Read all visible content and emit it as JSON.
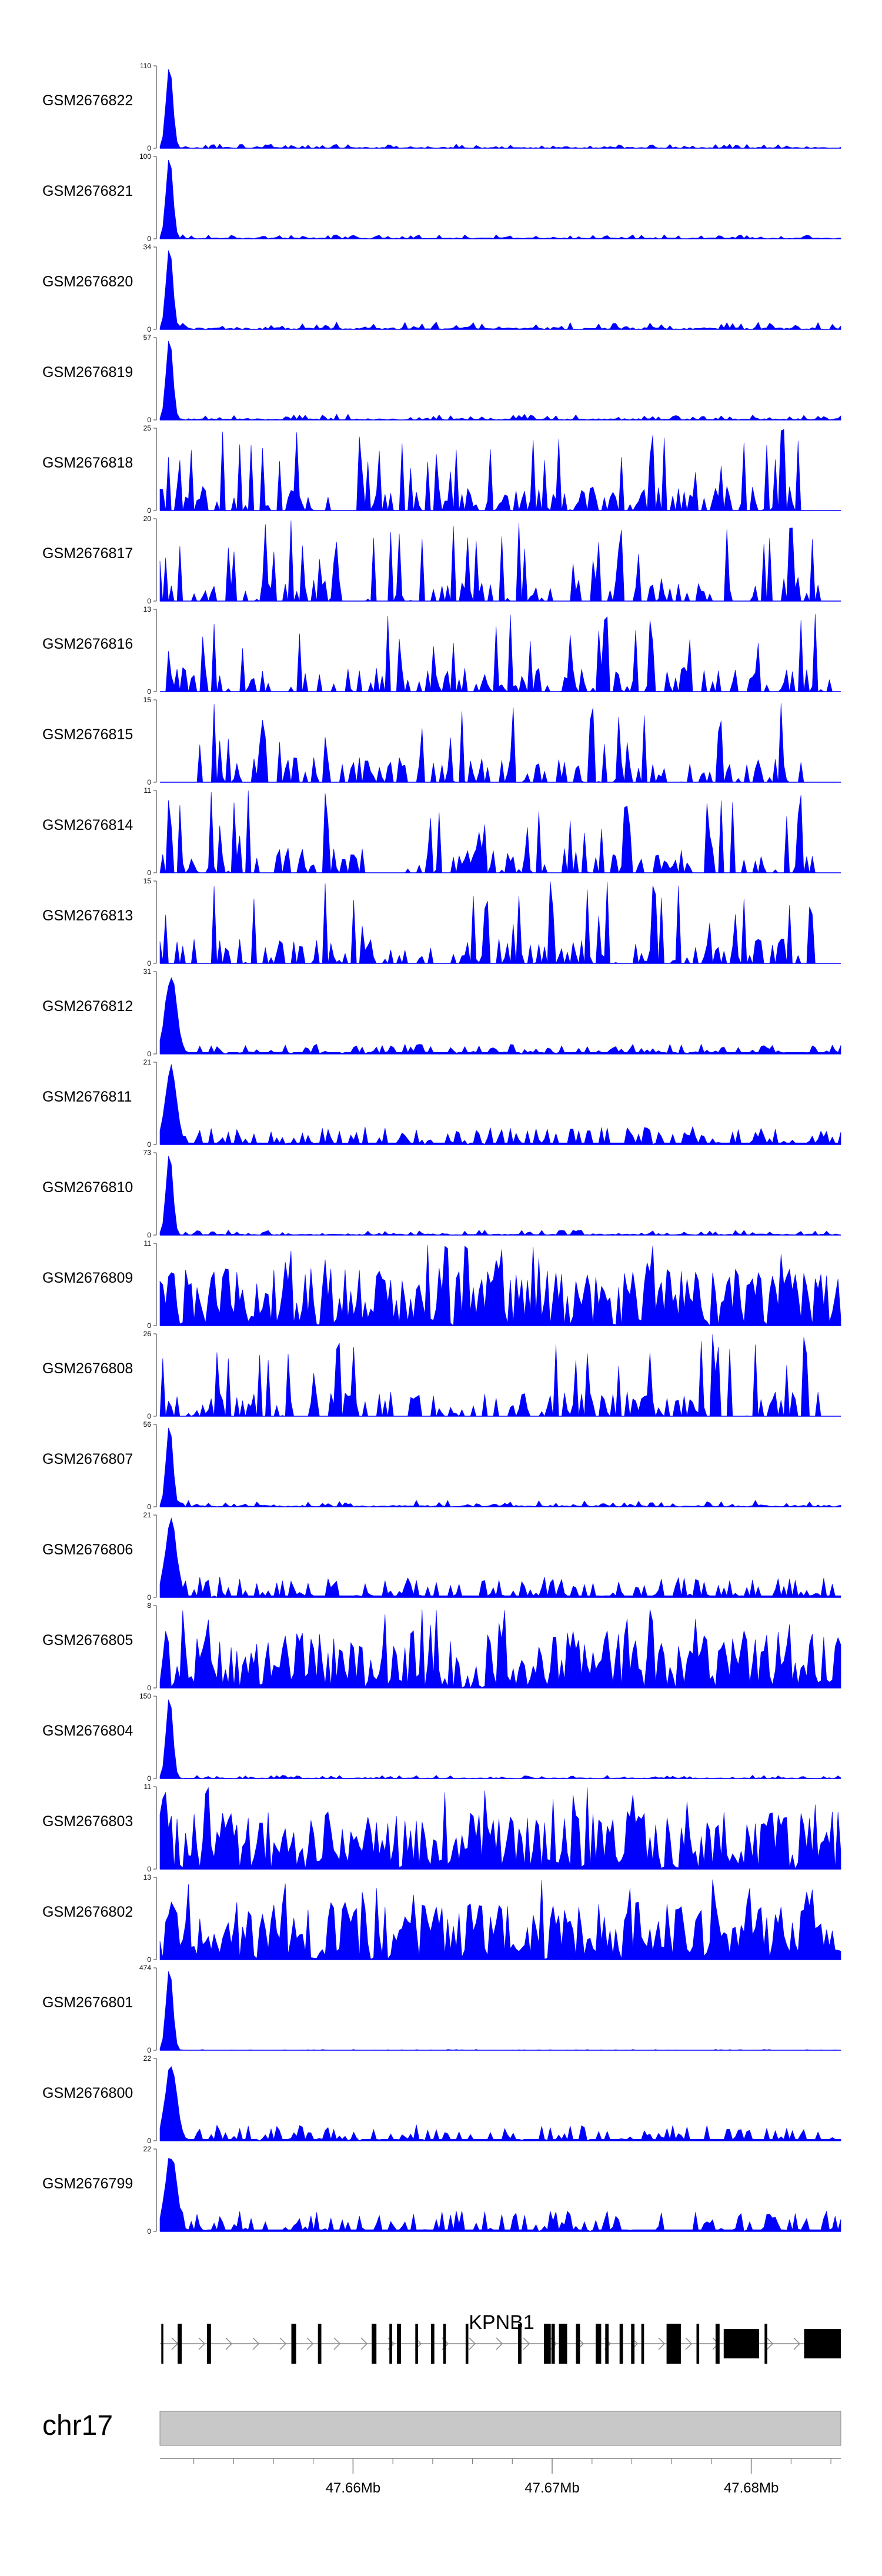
{
  "chart_data": {
    "type": "area",
    "tracks": [
      {
        "name": "GSM2676822",
        "ymax": 110,
        "profile": "peak",
        "seed": 22,
        "noise": 0.05
      },
      {
        "name": "GSM2676821",
        "ymax": 100,
        "profile": "peak",
        "seed": 21,
        "noise": 0.05
      },
      {
        "name": "GSM2676820",
        "ymax": 34,
        "profile": "peak",
        "seed": 20,
        "noise": 0.09
      },
      {
        "name": "GSM2676819",
        "ymax": 57,
        "profile": "peak",
        "seed": 19,
        "noise": 0.07
      },
      {
        "name": "GSM2676818",
        "ymax": 25,
        "profile": "sparse",
        "seed": 18,
        "xend": 0.94
      },
      {
        "name": "GSM2676817",
        "ymax": 20,
        "profile": "sparse",
        "seed": 17,
        "xend": 0.97
      },
      {
        "name": "GSM2676816",
        "ymax": 13,
        "profile": "sparse",
        "seed": 16,
        "xend": 0.99
      },
      {
        "name": "GSM2676815",
        "ymax": 15,
        "profile": "sparse",
        "seed": 15,
        "xstart": 0.05,
        "xend": 0.96
      },
      {
        "name": "GSM2676814",
        "ymax": 11,
        "profile": "sparse",
        "seed": 14,
        "xend": 0.96
      },
      {
        "name": "GSM2676813",
        "ymax": 15,
        "profile": "sparse",
        "seed": 13,
        "xend": 0.96
      },
      {
        "name": "GSM2676812",
        "ymax": 31,
        "profile": "mixed",
        "seed": 12,
        "noise": 0.12
      },
      {
        "name": "GSM2676811",
        "ymax": 21,
        "profile": "mixed",
        "seed": 11,
        "noise": 0.22
      },
      {
        "name": "GSM2676810",
        "ymax": 73,
        "profile": "peak",
        "seed": 10,
        "noise": 0.06
      },
      {
        "name": "GSM2676809",
        "ymax": 11,
        "profile": "dense",
        "seed": 9
      },
      {
        "name": "GSM2676808",
        "ymax": 26,
        "profile": "sparse",
        "seed": 8,
        "xend": 0.97
      },
      {
        "name": "GSM2676807",
        "ymax": 56,
        "profile": "peak",
        "seed": 7,
        "noise": 0.08
      },
      {
        "name": "GSM2676806",
        "ymax": 21,
        "profile": "mixed",
        "seed": 6,
        "noise": 0.25
      },
      {
        "name": "GSM2676805",
        "ymax": 8,
        "profile": "dense",
        "seed": 5
      },
      {
        "name": "GSM2676804",
        "ymax": 150,
        "profile": "peak",
        "seed": 4,
        "noise": 0.04
      },
      {
        "name": "GSM2676803",
        "ymax": 11,
        "profile": "dense",
        "seed": 3
      },
      {
        "name": "GSM2676802",
        "ymax": 13,
        "profile": "dense",
        "seed": 2
      },
      {
        "name": "GSM2676801",
        "ymax": 474,
        "profile": "peak",
        "seed": 1,
        "noise": 0.01
      },
      {
        "name": "GSM2676800",
        "ymax": 22,
        "profile": "mixed",
        "seed": 100,
        "noise": 0.2
      },
      {
        "name": "GSM2676799",
        "ymax": 22,
        "profile": "mixed",
        "seed": 99,
        "noise": 0.25
      }
    ],
    "ymin": 0,
    "gene": {
      "name": "KPNB1",
      "exons": [
        [
          0.002,
          0.005
        ],
        [
          0.026,
          0.032
        ],
        [
          0.069,
          0.075
        ],
        [
          0.193,
          0.2
        ],
        [
          0.232,
          0.237
        ],
        [
          0.311,
          0.318
        ],
        [
          0.337,
          0.341
        ],
        [
          0.348,
          0.354
        ],
        [
          0.375,
          0.379
        ],
        [
          0.398,
          0.403
        ],
        [
          0.416,
          0.42
        ],
        [
          0.449,
          0.453
        ],
        [
          0.526,
          0.531
        ],
        [
          0.564,
          0.574
        ],
        [
          0.575,
          0.58
        ],
        [
          0.586,
          0.598
        ],
        [
          0.611,
          0.617
        ],
        [
          0.64,
          0.648
        ],
        [
          0.654,
          0.659
        ],
        [
          0.675,
          0.68
        ],
        [
          0.692,
          0.697
        ],
        [
          0.707,
          0.711
        ],
        [
          0.744,
          0.765
        ],
        [
          0.788,
          0.792
        ],
        [
          0.816,
          0.822
        ],
        [
          0.828,
          0.88
        ],
        [
          0.888,
          0.892
        ],
        [
          0.946,
          1.0
        ]
      ]
    },
    "chromosome": "chr17",
    "x_axis": {
      "ticks": [
        "47.66Mb",
        "47.67Mb",
        "47.68Mb"
      ],
      "range_mb": [
        47.6503,
        47.6845
      ],
      "tick_values_mb": [
        47.66,
        47.67,
        47.68
      ],
      "minor_step_mb": 0.002
    },
    "fill_color": "#0000FF"
  }
}
